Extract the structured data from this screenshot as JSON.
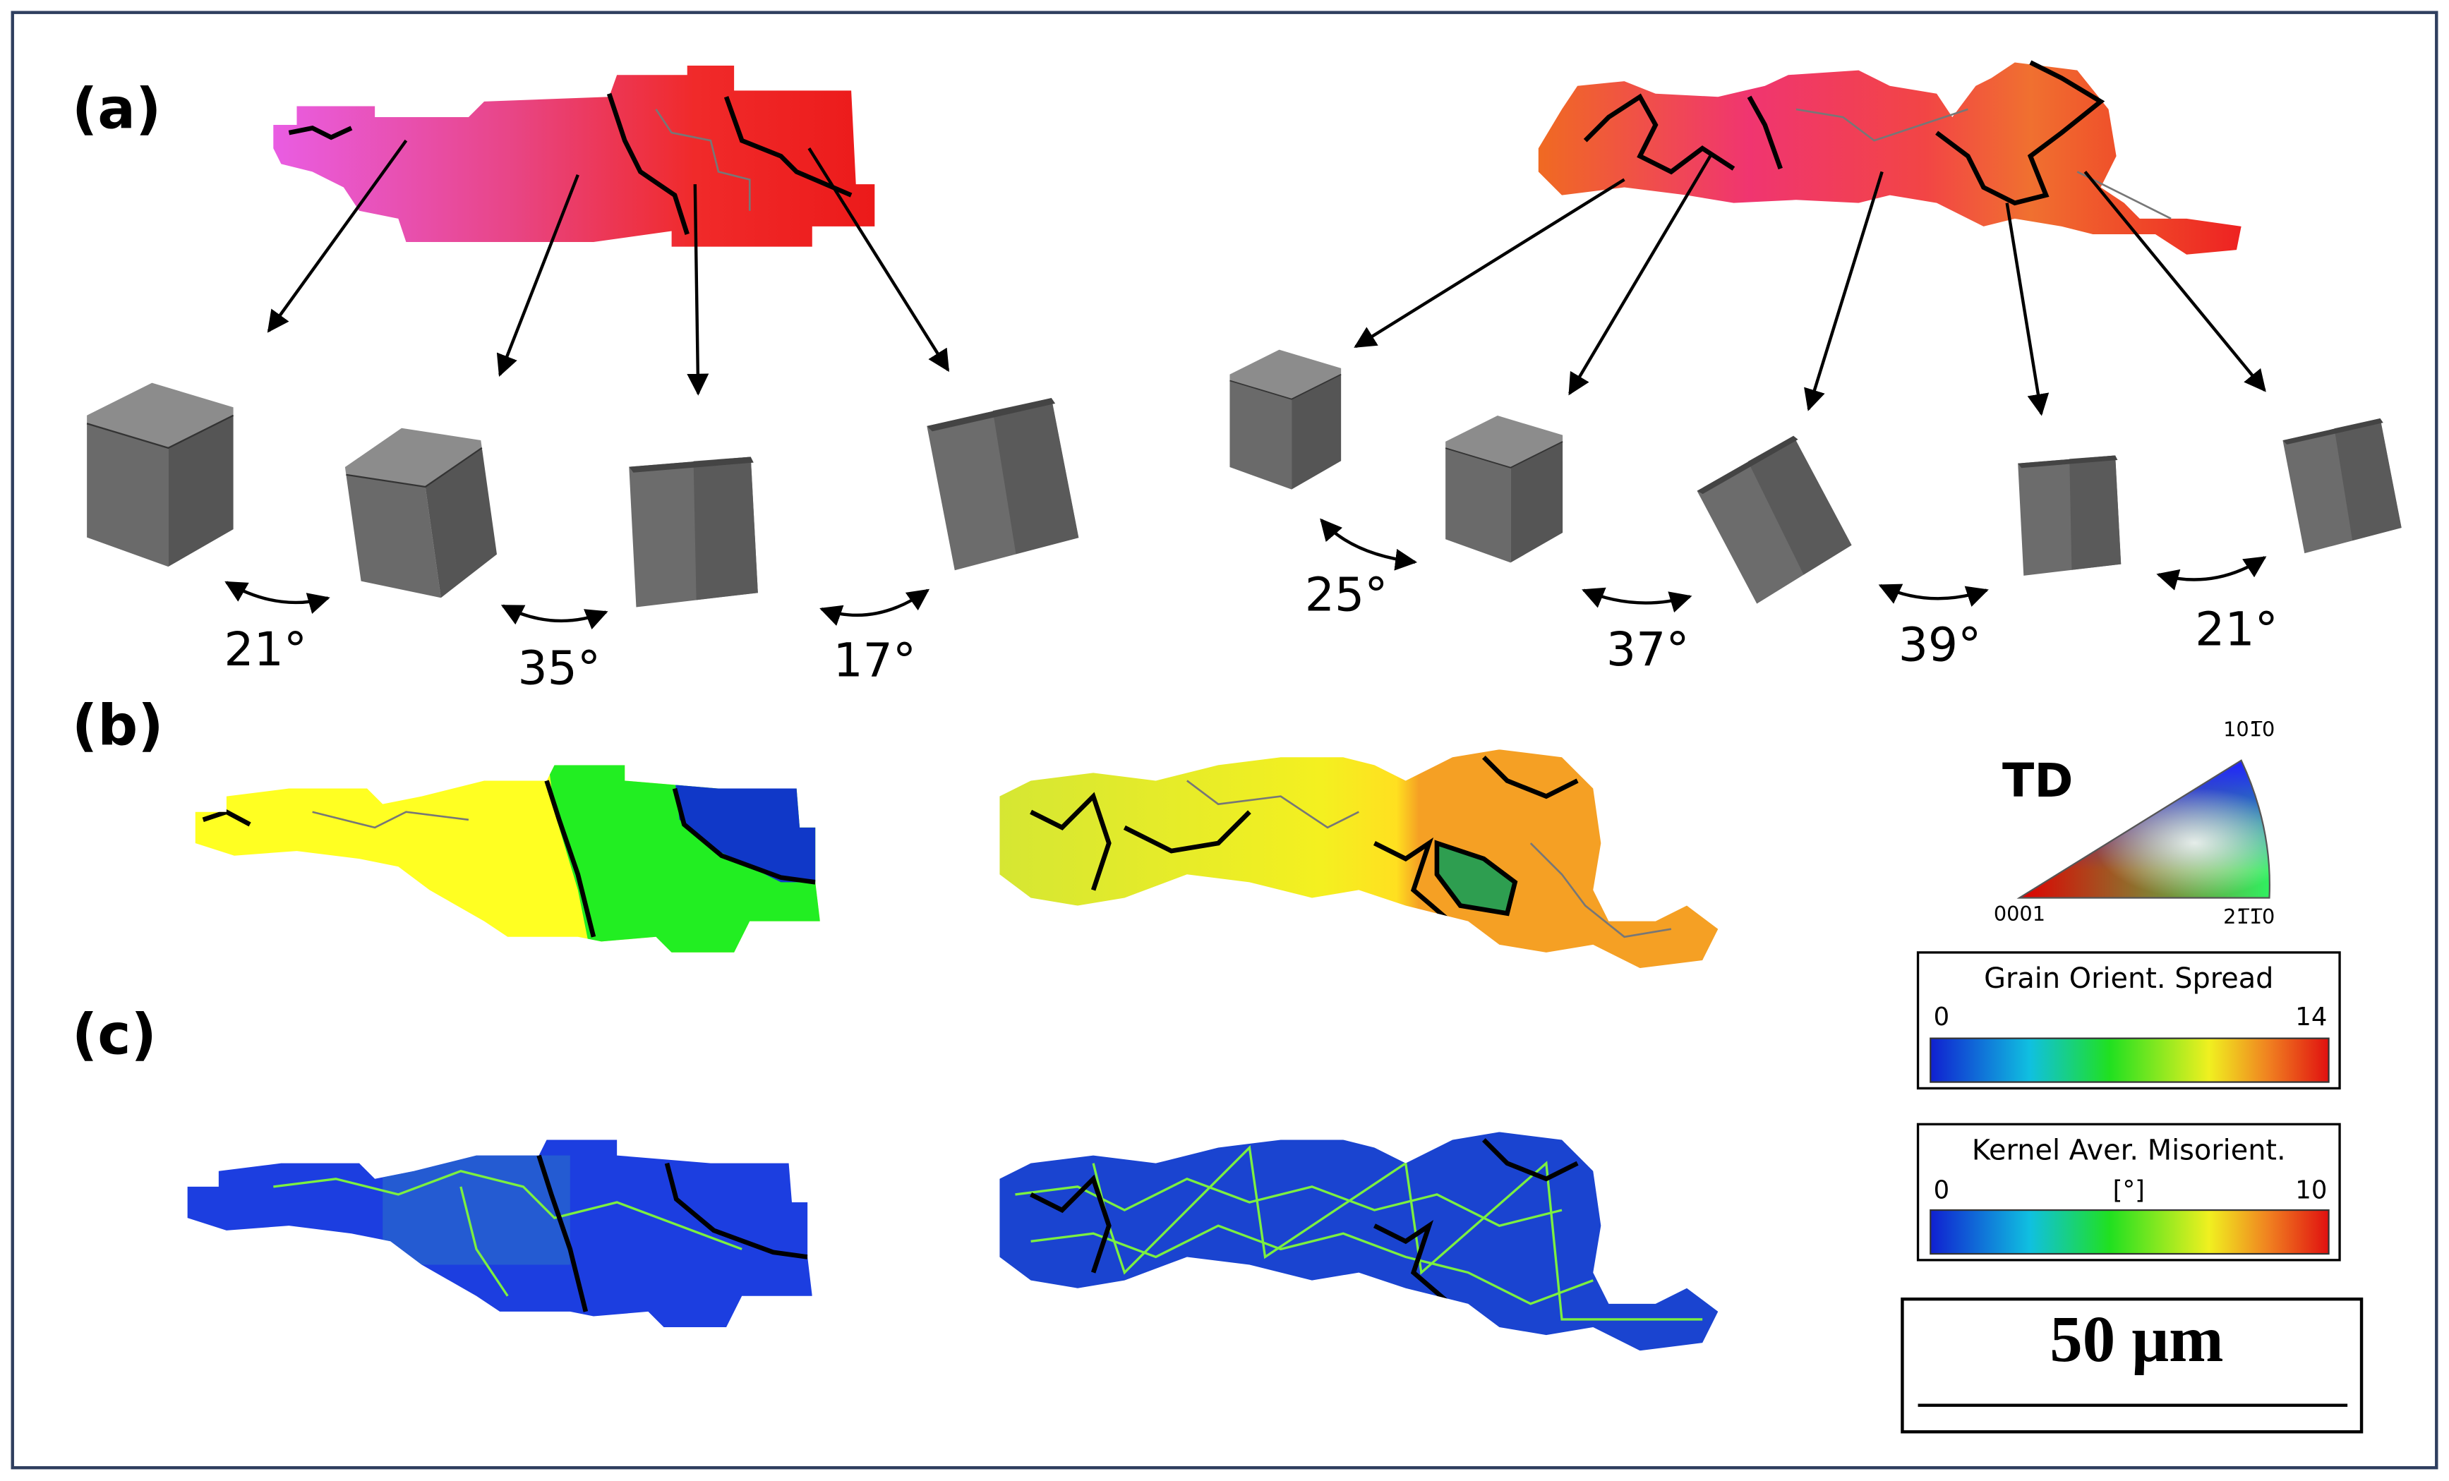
{
  "panels": {
    "a": "(a)",
    "b": "(b)",
    "c": "(c)"
  },
  "misorientation_angles": {
    "left": [
      "21°",
      "35°",
      "17°"
    ],
    "right": [
      "25°",
      "37°",
      "39°",
      "21°"
    ]
  },
  "ipf_legend": {
    "title": "TD",
    "top": "101̅0",
    "origin": "0001",
    "right": "21̅1̅0"
  },
  "grain_orient_spread": {
    "title": "Grain Orient. Spread",
    "min": "0",
    "max": "14"
  },
  "kernel_misorientation": {
    "title": "Kernel Aver. Misorient.",
    "min": "0",
    "unit": "[°]",
    "max": "10"
  },
  "scale_bar": "50 μm"
}
